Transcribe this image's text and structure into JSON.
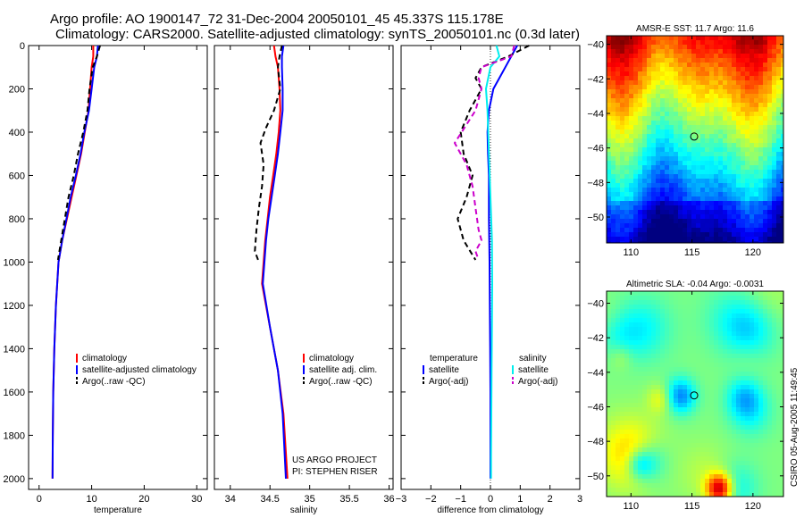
{
  "figure": {
    "title_line1": "Argo profile: AO 1900147_72 31-Dec-2004 20050101_45 45.337S 115.178E",
    "title_line2": "Climatology: CARS2000. Satellite-adjusted climatology: synTS_20050101.nc (0.3d later)",
    "project_line1": "US ARGO PROJECT",
    "project_line2": "PI: STEPHEN RISER",
    "stamp": "CSIRO 05-Aug-2005 11:49:45"
  },
  "colors": {
    "climatology": "#ff0000",
    "satellite": "#0000ff",
    "argo": "#000000",
    "argo_sal_diff": "#cc00cc",
    "sat_sal_diff": "#00eeee"
  },
  "chart_data": [
    {
      "type": "line",
      "id": "temperature",
      "xlabel": "temperature",
      "xlim": [
        -2,
        32
      ],
      "ylim": [
        2050,
        0
      ],
      "xticks": [
        0,
        10,
        20,
        30
      ],
      "yticks": [
        0,
        200,
        400,
        600,
        800,
        1000,
        1200,
        1400,
        1600,
        1800,
        2000
      ],
      "legend": [
        "climatology",
        "satellite-adjusted climatology",
        "Argo(..raw -QC)"
      ],
      "series": [
        {
          "name": "climatology",
          "style": "solid",
          "color": "#ff0000",
          "x": [
            10.3,
            10.3,
            10.0,
            9.7,
            9.4,
            8.7,
            8.0,
            7.1,
            6.2,
            5.3,
            4.4,
            3.7,
            3.2,
            2.9,
            2.7,
            2.6,
            2.55
          ],
          "y": [
            0,
            50,
            100,
            200,
            300,
            400,
            500,
            600,
            700,
            800,
            900,
            1000,
            1200,
            1400,
            1600,
            1800,
            2000
          ]
        },
        {
          "name": "satellite-adjusted climatology",
          "style": "solid",
          "color": "#0000ff",
          "x": [
            11.2,
            11.0,
            10.5,
            10.0,
            9.5,
            8.6,
            7.9,
            7.0,
            6.0,
            5.2,
            4.4,
            3.7,
            3.2,
            2.9,
            2.7,
            2.6,
            2.55
          ],
          "y": [
            0,
            50,
            100,
            200,
            300,
            400,
            500,
            600,
            700,
            800,
            900,
            1000,
            1200,
            1400,
            1600,
            1800,
            2000
          ]
        },
        {
          "name": "Argo(..raw -QC)",
          "style": "dashed",
          "color": "#000000",
          "x": [
            11.6,
            11.0,
            10.2,
            9.6,
            9.2,
            8.4,
            7.4,
            6.6,
            5.6,
            4.9,
            4.2,
            3.6
          ],
          "y": [
            0,
            50,
            100,
            200,
            300,
            400,
            500,
            600,
            700,
            800,
            900,
            990
          ]
        }
      ]
    },
    {
      "type": "line",
      "id": "salinity",
      "xlabel": "salinity",
      "xlim": [
        33.8,
        36.05
      ],
      "ylim": [
        2050,
        0
      ],
      "xticks": [
        34,
        34.5,
        35,
        35.5,
        36
      ],
      "legend": [
        "climatology",
        "satellite adj. clim.",
        "Argo(..raw -QC)"
      ],
      "series": [
        {
          "name": "climatology",
          "style": "solid",
          "color": "#ff0000",
          "x": [
            34.55,
            34.57,
            34.6,
            34.62,
            34.63,
            34.61,
            34.58,
            34.54,
            34.5,
            34.47,
            34.44,
            34.42,
            34.4,
            34.5,
            34.6,
            34.67,
            34.72
          ],
          "y": [
            0,
            50,
            100,
            200,
            300,
            400,
            500,
            600,
            700,
            800,
            900,
            1000,
            1100,
            1300,
            1500,
            1700,
            2000
          ]
        },
        {
          "name": "satellite adj. clim.",
          "style": "solid",
          "color": "#0000ff",
          "x": [
            34.67,
            34.65,
            34.65,
            34.66,
            34.66,
            34.63,
            34.6,
            34.56,
            34.52,
            34.48,
            34.45,
            34.43,
            34.41,
            34.5,
            34.6,
            34.66,
            34.7
          ],
          "y": [
            0,
            50,
            100,
            200,
            300,
            400,
            500,
            600,
            700,
            800,
            900,
            1000,
            1100,
            1300,
            1500,
            1700,
            2000
          ]
        },
        {
          "name": "Argo(..raw -QC)",
          "style": "dashed",
          "color": "#000000",
          "x": [
            34.65,
            34.62,
            34.6,
            34.63,
            34.55,
            34.45,
            34.38,
            34.42,
            34.4,
            34.36,
            34.33,
            34.31,
            34.35
          ],
          "y": [
            0,
            50,
            100,
            200,
            300,
            380,
            450,
            550,
            650,
            750,
            850,
            950,
            990
          ]
        }
      ]
    },
    {
      "type": "line",
      "id": "difference",
      "xlabel": "difference from climatology",
      "xlim": [
        -3,
        3
      ],
      "ylim": [
        2050,
        0
      ],
      "xticks": [
        -3,
        -2,
        -1,
        0,
        1,
        2,
        3
      ],
      "legend_left_title": "temperature",
      "legend_right_title": "salinity",
      "legend_left": [
        "satellite",
        "Argo(-adj)"
      ],
      "legend_right": [
        "satellite",
        "Argo(-adj)"
      ],
      "series": [
        {
          "name": "temperature satellite",
          "style": "solid",
          "color": "#0000ff",
          "x": [
            0.9,
            0.7,
            0.5,
            0.3,
            0.1,
            -0.05,
            -0.1,
            -0.08,
            -0.05,
            -0.05,
            -0.03,
            -0.02,
            -0.01,
            0,
            0,
            0
          ],
          "y": [
            0,
            50,
            100,
            150,
            200,
            300,
            400,
            500,
            600,
            800,
            1000,
            1200,
            1400,
            1600,
            1800,
            2000
          ]
        },
        {
          "name": "temperature Argo(-adj)",
          "style": "dashed",
          "color": "#000000",
          "x": [
            1.3,
            0.6,
            -0.3,
            -0.5,
            -0.3,
            -0.7,
            -1.0,
            -0.9,
            -0.6,
            -0.8,
            -1.1,
            -0.9,
            -0.5
          ],
          "y": [
            0,
            50,
            100,
            150,
            200,
            300,
            400,
            500,
            600,
            700,
            800,
            900,
            990
          ]
        },
        {
          "name": "salinity satellite",
          "style": "solid",
          "color": "#00eeee",
          "x": [
            0.2,
            0.3,
            0.0,
            -0.15,
            -0.1,
            -0.05,
            0.0,
            0.05,
            0.06,
            0.05,
            0.04,
            0.03,
            0.02,
            0.02
          ],
          "y": [
            0,
            50,
            100,
            200,
            300,
            500,
            700,
            900,
            1100,
            1300,
            1500,
            1700,
            1900,
            2000
          ]
        },
        {
          "name": "salinity Argo(-adj)",
          "style": "dashed",
          "color": "#cc00cc",
          "x": [
            0.8,
            0.7,
            -0.3,
            -0.4,
            -0.3,
            -0.5,
            -1.2,
            -0.8,
            -0.6,
            -0.5,
            -0.4,
            -0.3,
            -0.5,
            -0.4
          ],
          "y": [
            0,
            50,
            100,
            150,
            200,
            300,
            450,
            550,
            650,
            750,
            850,
            900,
            950,
            990
          ]
        }
      ]
    },
    {
      "type": "heatmap",
      "id": "sst-map",
      "title": "AMSR-E SST: 11.7 Argo: 11.6",
      "xlim": [
        108,
        122.5
      ],
      "ylim": [
        -51.5,
        -39.5
      ],
      "xticks": [
        110,
        115,
        120
      ],
      "yticks": [
        -40,
        -42,
        -44,
        -46,
        -48,
        -50
      ],
      "marker": {
        "x": 115.18,
        "y": -45.34
      }
    },
    {
      "type": "heatmap",
      "id": "sla-map",
      "title": "Altimetric SLA: -0.04 Argo: -0.0031",
      "xlim": [
        108,
        122.5
      ],
      "ylim": [
        -51.2,
        -39.3
      ],
      "xticks": [
        110,
        115,
        120
      ],
      "yticks": [
        -40,
        -42,
        -44,
        -46,
        -48,
        -50
      ],
      "marker": {
        "x": 115.18,
        "y": -45.34
      }
    }
  ]
}
